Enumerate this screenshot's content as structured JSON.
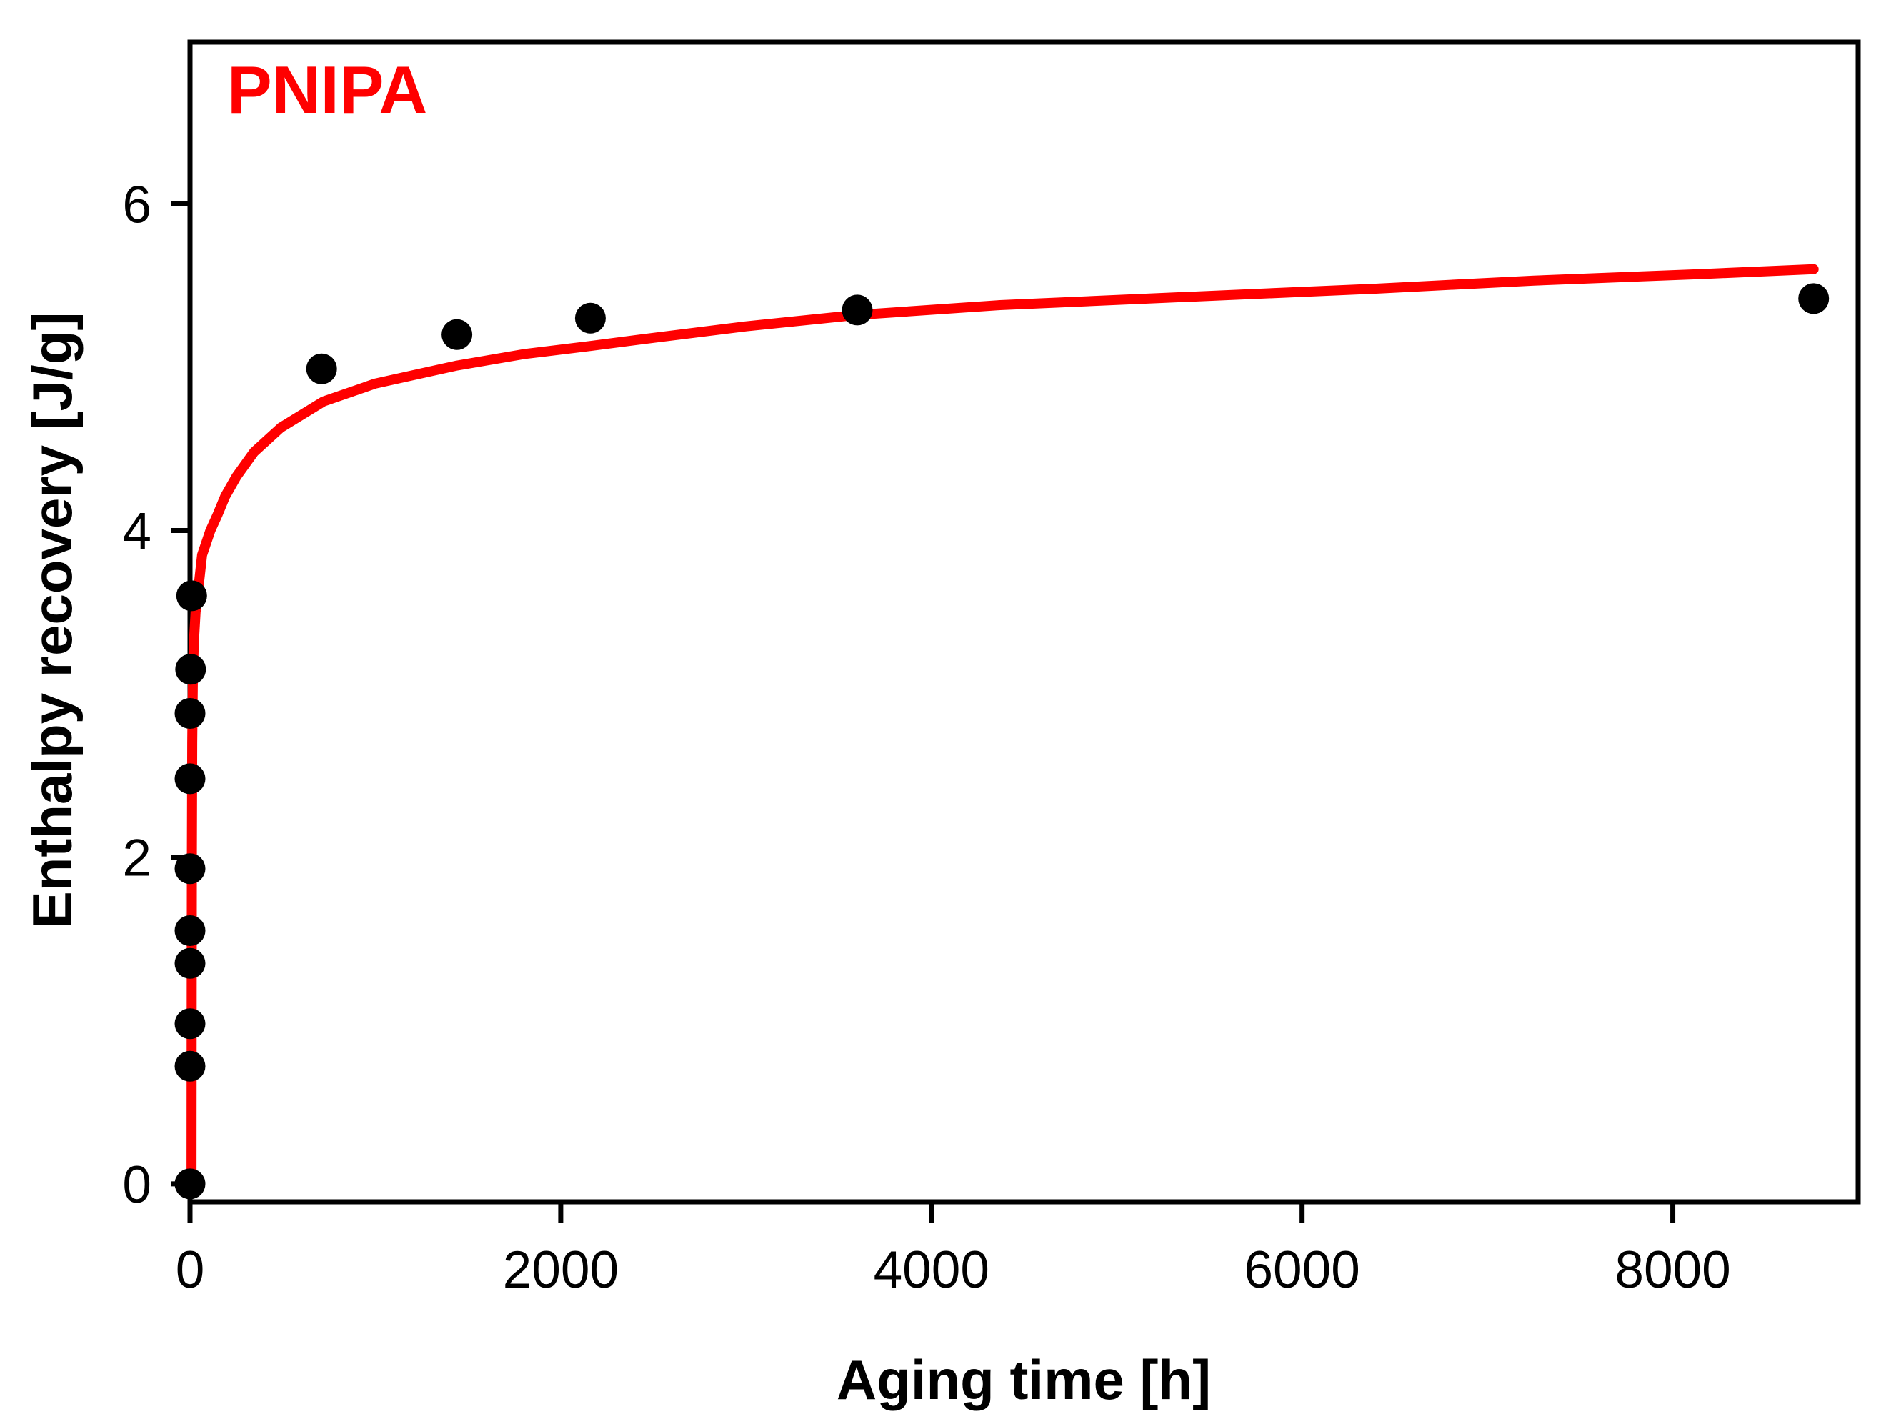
{
  "chart_data": {
    "type": "scatter",
    "title": "PNIPA",
    "title_color": "#ff0000",
    "xlabel": "Aging time [h]",
    "ylabel": "Enthalpy recovery [J/g]",
    "xlim": [
      0,
      9000
    ],
    "ylim": [
      -0.11,
      6.99
    ],
    "xticks": [
      0,
      2000,
      4000,
      6000,
      8000
    ],
    "yticks": [
      0,
      2,
      4,
      6
    ],
    "grid": false,
    "legend": "none",
    "frame": true,
    "colors": {
      "points": "#000000",
      "fit_line": "#ff0000",
      "axes": "#000000",
      "background": "#ffffff"
    },
    "series": [
      {
        "name": "enthalpy-recovery-data",
        "type": "scatter",
        "marker": "filled-circle",
        "color": "#000000",
        "points": [
          [
            0,
            0.0
          ],
          [
            0,
            0.72
          ],
          [
            0,
            0.98
          ],
          [
            0,
            1.35
          ],
          [
            0,
            1.55
          ],
          [
            0,
            1.93
          ],
          [
            0,
            2.48
          ],
          [
            0,
            2.88
          ],
          [
            3,
            3.15
          ],
          [
            9,
            3.6
          ],
          [
            710,
            4.99
          ],
          [
            1440,
            5.2
          ],
          [
            2160,
            5.3
          ],
          [
            3600,
            5.35
          ],
          [
            8760,
            5.42
          ]
        ]
      },
      {
        "name": "fit-curve",
        "type": "line",
        "color": "#ff0000",
        "points": [
          [
            8,
            -0.04
          ],
          [
            9,
            1.0
          ],
          [
            10,
            2.0
          ],
          [
            12,
            2.7
          ],
          [
            15,
            3.05
          ],
          [
            20,
            3.3
          ],
          [
            30,
            3.5
          ],
          [
            41,
            3.6
          ],
          [
            65,
            3.85
          ],
          [
            110,
            4.0
          ],
          [
            150,
            4.1
          ],
          [
            190,
            4.21
          ],
          [
            250,
            4.33
          ],
          [
            345,
            4.48
          ],
          [
            490,
            4.63
          ],
          [
            720,
            4.79
          ],
          [
            1000,
            4.9
          ],
          [
            1200,
            4.95
          ],
          [
            1440,
            5.01
          ],
          [
            1800,
            5.08
          ],
          [
            2160,
            5.13
          ],
          [
            2500,
            5.18
          ],
          [
            3000,
            5.25
          ],
          [
            3600,
            5.32
          ],
          [
            4370,
            5.38
          ],
          [
            5370,
            5.43
          ],
          [
            6380,
            5.48
          ],
          [
            7250,
            5.53
          ],
          [
            8150,
            5.57
          ],
          [
            8760,
            5.6
          ]
        ]
      }
    ]
  }
}
